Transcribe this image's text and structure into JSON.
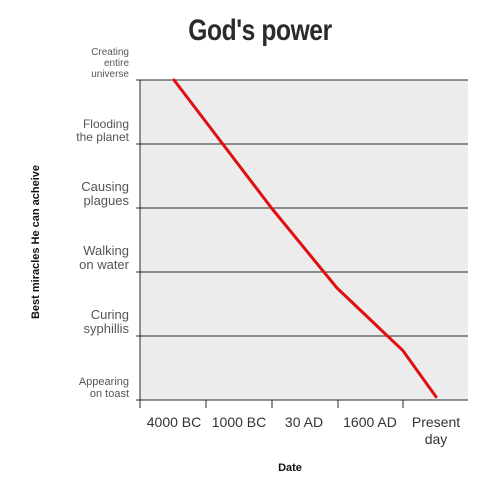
{
  "chart_data": {
    "type": "line",
    "title": "God's power",
    "xlabel": "Date",
    "ylabel": "Best miracles He can acheive",
    "categories": [
      "4000 BC",
      "1000 BC",
      "30 AD",
      "1600 AD",
      "Present day"
    ],
    "y_levels": [
      "Appearing on toast",
      "Curing syphillis",
      "Walking on water",
      "Causing plagues",
      "Flooding the planet",
      "Creating entire universe"
    ],
    "series": [
      {
        "color": "#e01010",
        "points": [
          {
            "x": 0.0,
            "y": 5.0
          },
          {
            "x": 1.5,
            "y": 3.0
          },
          {
            "x": 2.5,
            "y": 1.75
          },
          {
            "x": 3.5,
            "y": 0.77
          },
          {
            "x": 4.5,
            "y": 0.05
          }
        ]
      }
    ],
    "ylim": [
      0,
      5
    ],
    "grid": true,
    "plot_background": "#ececec"
  }
}
